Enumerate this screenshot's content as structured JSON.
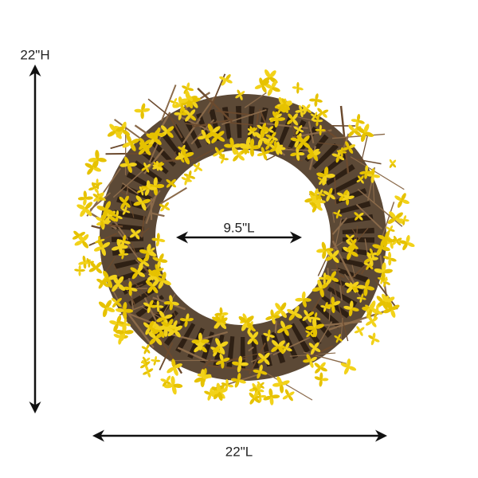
{
  "dimensions": {
    "height": "22\"H",
    "inner_diameter": "9.5\"L",
    "width": "22\"L"
  }
}
